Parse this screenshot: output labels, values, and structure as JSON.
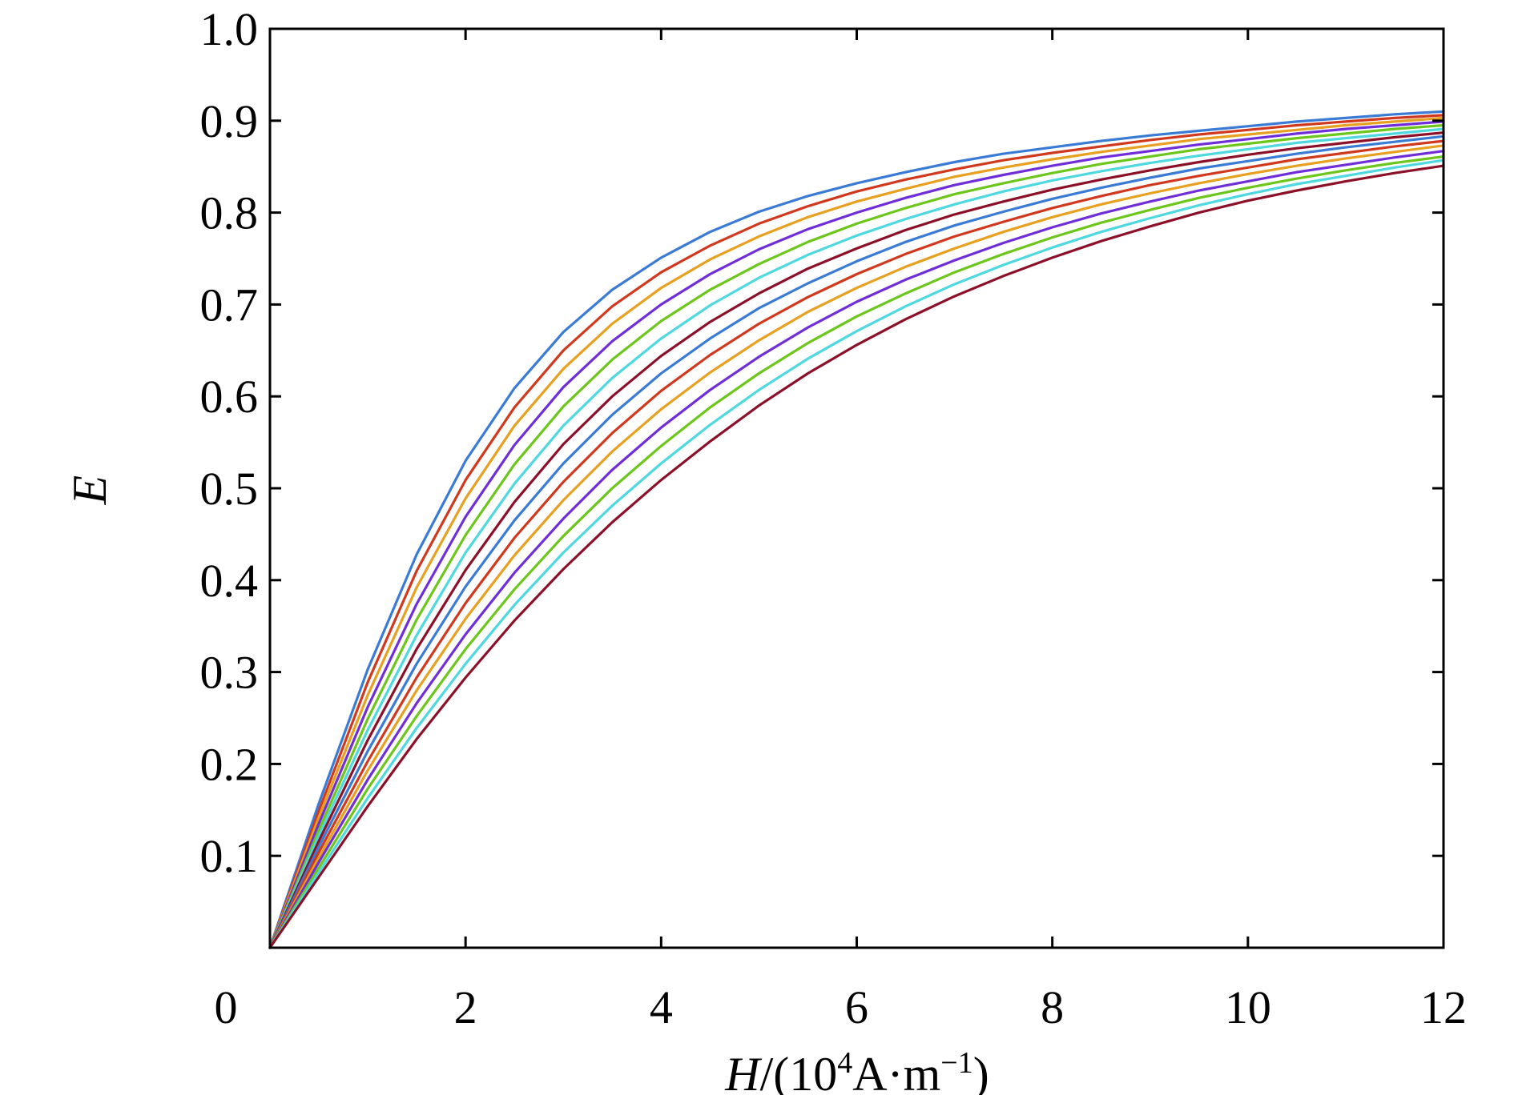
{
  "chart_data": {
    "type": "line",
    "xlabel": {
      "var": "H",
      "sep": "/(10",
      "exp": "4",
      "unit_a": "A·m",
      "exp2": "−1",
      "close": ")"
    },
    "ylabel": "E",
    "xlim": [
      0,
      12
    ],
    "ylim": [
      0,
      1.0
    ],
    "x_ticks": [
      {
        "v": 0,
        "label": "0"
      },
      {
        "v": 2,
        "label": "2"
      },
      {
        "v": 4,
        "label": "4"
      },
      {
        "v": 6,
        "label": "6"
      },
      {
        "v": 8,
        "label": "8"
      },
      {
        "v": 10,
        "label": "10"
      },
      {
        "v": 12,
        "label": "12"
      }
    ],
    "y_ticks": [
      {
        "v": 0.1,
        "label": "0.1"
      },
      {
        "v": 0.2,
        "label": "0.2"
      },
      {
        "v": 0.3,
        "label": "0.3"
      },
      {
        "v": 0.4,
        "label": "0.4"
      },
      {
        "v": 0.5,
        "label": "0.5"
      },
      {
        "v": 0.6,
        "label": "0.6"
      },
      {
        "v": 0.7,
        "label": "0.7"
      },
      {
        "v": 0.8,
        "label": "0.8"
      },
      {
        "v": 0.9,
        "label": "0.9"
      },
      {
        "v": 1.0,
        "label": "1.0"
      }
    ],
    "grid": false,
    "legend": "none",
    "x": [
      0,
      0.5,
      1,
      1.5,
      2,
      2.5,
      3,
      3.5,
      4,
      4.5,
      5,
      5.5,
      6,
      6.5,
      7,
      7.5,
      8,
      8.5,
      9,
      9.5,
      10,
      10.5,
      11,
      11.5,
      12
    ],
    "series": [
      {
        "color": "#3a7bd5",
        "values": [
          0,
          0.157,
          0.303,
          0.428,
          0.53,
          0.609,
          0.67,
          0.716,
          0.751,
          0.779,
          0.801,
          0.818,
          0.832,
          0.844,
          0.855,
          0.864,
          0.871,
          0.878,
          0.884,
          0.889,
          0.894,
          0.899,
          0.903,
          0.907,
          0.91
        ]
      },
      {
        "color": "#d1391f",
        "values": [
          0,
          0.149,
          0.289,
          0.41,
          0.509,
          0.588,
          0.65,
          0.698,
          0.735,
          0.764,
          0.788,
          0.807,
          0.823,
          0.836,
          0.847,
          0.857,
          0.865,
          0.872,
          0.879,
          0.885,
          0.89,
          0.895,
          0.899,
          0.903,
          0.906
        ]
      },
      {
        "color": "#e8a020",
        "values": [
          0,
          0.142,
          0.275,
          0.392,
          0.489,
          0.568,
          0.63,
          0.679,
          0.718,
          0.749,
          0.774,
          0.795,
          0.812,
          0.826,
          0.839,
          0.849,
          0.858,
          0.866,
          0.873,
          0.88,
          0.885,
          0.89,
          0.895,
          0.899,
          0.903
        ]
      },
      {
        "color": "#6f2ed8",
        "values": [
          0,
          0.135,
          0.262,
          0.374,
          0.469,
          0.547,
          0.61,
          0.66,
          0.7,
          0.733,
          0.76,
          0.782,
          0.8,
          0.816,
          0.83,
          0.841,
          0.851,
          0.86,
          0.867,
          0.874,
          0.88,
          0.886,
          0.891,
          0.895,
          0.899
        ]
      },
      {
        "color": "#6cc61c",
        "values": [
          0,
          0.128,
          0.249,
          0.357,
          0.449,
          0.526,
          0.589,
          0.64,
          0.682,
          0.716,
          0.744,
          0.768,
          0.788,
          0.805,
          0.82,
          0.832,
          0.843,
          0.853,
          0.861,
          0.869,
          0.875,
          0.881,
          0.886,
          0.891,
          0.895
        ]
      },
      {
        "color": "#4fd8e0",
        "values": [
          0,
          0.122,
          0.237,
          0.34,
          0.43,
          0.505,
          0.568,
          0.62,
          0.663,
          0.699,
          0.729,
          0.754,
          0.775,
          0.793,
          0.809,
          0.823,
          0.835,
          0.845,
          0.854,
          0.862,
          0.869,
          0.876,
          0.881,
          0.886,
          0.891
        ]
      },
      {
        "color": "#8b1028",
        "values": [
          0,
          0.116,
          0.226,
          0.325,
          0.411,
          0.485,
          0.548,
          0.6,
          0.644,
          0.681,
          0.712,
          0.739,
          0.761,
          0.781,
          0.798,
          0.812,
          0.825,
          0.836,
          0.846,
          0.855,
          0.863,
          0.87,
          0.876,
          0.882,
          0.887
        ]
      },
      {
        "color": "#3a7bd5",
        "values": [
          0,
          0.11,
          0.214,
          0.309,
          0.393,
          0.465,
          0.527,
          0.58,
          0.625,
          0.663,
          0.696,
          0.723,
          0.747,
          0.768,
          0.786,
          0.801,
          0.815,
          0.827,
          0.838,
          0.848,
          0.856,
          0.864,
          0.871,
          0.877,
          0.883
        ]
      },
      {
        "color": "#d1391f",
        "values": [
          0,
          0.104,
          0.203,
          0.294,
          0.375,
          0.446,
          0.507,
          0.56,
          0.606,
          0.645,
          0.679,
          0.708,
          0.733,
          0.755,
          0.774,
          0.79,
          0.805,
          0.818,
          0.83,
          0.84,
          0.849,
          0.858,
          0.865,
          0.872,
          0.878
        ]
      },
      {
        "color": "#e8a020",
        "values": [
          0,
          0.098,
          0.193,
          0.28,
          0.358,
          0.427,
          0.487,
          0.54,
          0.586,
          0.626,
          0.661,
          0.692,
          0.718,
          0.741,
          0.761,
          0.779,
          0.795,
          0.809,
          0.821,
          0.832,
          0.842,
          0.851,
          0.859,
          0.866,
          0.873
        ]
      },
      {
        "color": "#6f2ed8",
        "values": [
          0,
          0.093,
          0.183,
          0.266,
          0.341,
          0.408,
          0.467,
          0.52,
          0.566,
          0.607,
          0.643,
          0.675,
          0.703,
          0.727,
          0.748,
          0.767,
          0.784,
          0.799,
          0.812,
          0.824,
          0.834,
          0.844,
          0.852,
          0.86,
          0.867
        ]
      },
      {
        "color": "#6cc61c",
        "values": [
          0,
          0.087,
          0.173,
          0.252,
          0.325,
          0.39,
          0.448,
          0.5,
          0.546,
          0.588,
          0.625,
          0.658,
          0.687,
          0.712,
          0.735,
          0.755,
          0.773,
          0.789,
          0.803,
          0.816,
          0.827,
          0.837,
          0.846,
          0.854,
          0.861
        ]
      },
      {
        "color": "#4fd8e0",
        "values": [
          0,
          0.082,
          0.163,
          0.239,
          0.309,
          0.373,
          0.43,
          0.481,
          0.527,
          0.569,
          0.607,
          0.641,
          0.671,
          0.698,
          0.722,
          0.743,
          0.762,
          0.779,
          0.794,
          0.808,
          0.82,
          0.831,
          0.84,
          0.849,
          0.857
        ]
      },
      {
        "color": "#8b1028",
        "values": [
          0,
          0.077,
          0.154,
          0.227,
          0.294,
          0.356,
          0.412,
          0.463,
          0.509,
          0.551,
          0.59,
          0.625,
          0.656,
          0.684,
          0.709,
          0.731,
          0.751,
          0.769,
          0.785,
          0.8,
          0.813,
          0.824,
          0.834,
          0.843,
          0.851
        ]
      }
    ]
  }
}
